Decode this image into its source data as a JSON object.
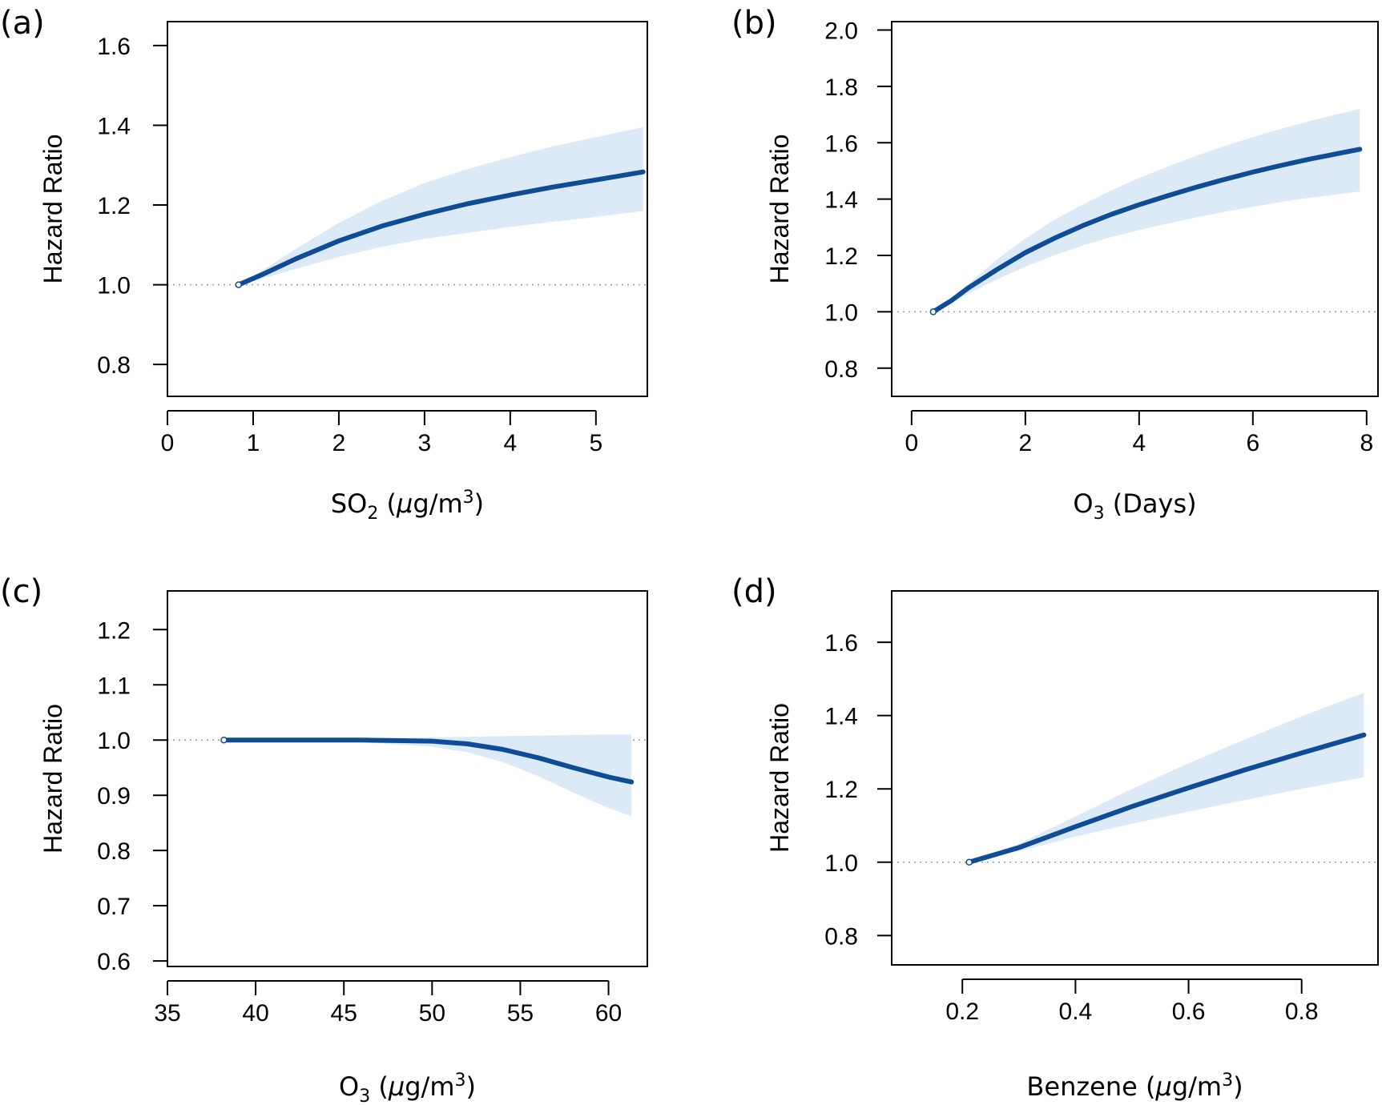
{
  "chart_data": [
    {
      "type": "line",
      "panel": "(a)",
      "ylabel": "Hazard Ratio",
      "xlabel": {
        "pre": "SO",
        "sub": "2",
        "post": " (",
        "it": "μ",
        "post2": "g/m",
        "sup": "3",
        "post3": ")"
      },
      "xlim": [
        0,
        5.6
      ],
      "ylim": [
        0.72,
        1.66
      ],
      "xticks": [
        0,
        1,
        2,
        3,
        4,
        5
      ],
      "xtick_labels": [
        "0",
        "1",
        "2",
        "3",
        "4",
        "5"
      ],
      "yticks": [
        0.8,
        1.0,
        1.2,
        1.4,
        1.6
      ],
      "ytick_labels": [
        "0.8",
        "1.0",
        "1.2",
        "1.4",
        "1.6"
      ],
      "reference_line": 1.0,
      "series": [
        {
          "x": [
            0.83,
            1.1,
            1.5,
            2.0,
            2.5,
            3.0,
            3.5,
            4.0,
            4.5,
            5.0,
            5.55
          ],
          "y": [
            1.0,
            1.025,
            1.065,
            1.11,
            1.147,
            1.177,
            1.203,
            1.225,
            1.245,
            1.263,
            1.283
          ],
          "lower": [
            1.0,
            1.015,
            1.04,
            1.07,
            1.095,
            1.115,
            1.13,
            1.145,
            1.158,
            1.17,
            1.185
          ],
          "upper": [
            1.0,
            1.035,
            1.09,
            1.155,
            1.21,
            1.255,
            1.29,
            1.32,
            1.347,
            1.37,
            1.395
          ]
        }
      ]
    },
    {
      "type": "line",
      "panel": "(b)",
      "ylabel": "Hazard Ratio",
      "xlabel": {
        "pre": "O",
        "sub": "3",
        "post": " (Days)"
      },
      "xlim": [
        -0.35,
        8.2
      ],
      "ylim": [
        0.7,
        2.03
      ],
      "xticks": [
        0,
        2,
        4,
        6,
        8
      ],
      "xtick_labels": [
        "0",
        "2",
        "4",
        "6",
        "8"
      ],
      "yticks": [
        0.8,
        1.0,
        1.2,
        1.4,
        1.6,
        1.8,
        2.0
      ],
      "ytick_labels": [
        "0.8",
        "1.0",
        "1.2",
        "1.4",
        "1.6",
        "1.8",
        "2.0"
      ],
      "reference_line": 1.0,
      "series": [
        {
          "x": [
            0.38,
            0.7,
            1.0,
            1.5,
            2.0,
            2.5,
            3.0,
            3.5,
            4.0,
            4.5,
            5.0,
            5.5,
            6.0,
            6.5,
            7.0,
            7.5,
            7.88
          ],
          "y": [
            1.0,
            1.04,
            1.085,
            1.15,
            1.21,
            1.26,
            1.305,
            1.345,
            1.38,
            1.412,
            1.442,
            1.47,
            1.496,
            1.52,
            1.542,
            1.562,
            1.577
          ],
          "lower": [
            1.0,
            1.03,
            1.065,
            1.115,
            1.16,
            1.2,
            1.235,
            1.265,
            1.29,
            1.313,
            1.335,
            1.355,
            1.373,
            1.39,
            1.405,
            1.418,
            1.427
          ],
          "upper": [
            1.0,
            1.05,
            1.1,
            1.185,
            1.26,
            1.325,
            1.38,
            1.43,
            1.475,
            1.515,
            1.553,
            1.588,
            1.62,
            1.65,
            1.677,
            1.702,
            1.72
          ]
        }
      ]
    },
    {
      "type": "line",
      "panel": "(c)",
      "ylabel": "Hazard Ratio",
      "xlabel": {
        "pre": "O",
        "sub": "3",
        "post": " (",
        "it": "μ",
        "post2": "g/m",
        "sup": "3",
        "post3": ")"
      },
      "xlim": [
        35,
        62.2
      ],
      "ylim": [
        0.59,
        1.27
      ],
      "xticks": [
        35,
        40,
        45,
        50,
        55,
        60
      ],
      "xtick_labels": [
        "35",
        "40",
        "45",
        "50",
        "55",
        "60"
      ],
      "yticks": [
        0.6,
        0.7,
        0.8,
        0.9,
        1.0,
        1.1,
        1.2
      ],
      "ytick_labels": [
        "0.6",
        "0.7",
        "0.8",
        "0.9",
        "1.0",
        "1.1",
        "1.2"
      ],
      "reference_line": 1.0,
      "series": [
        {
          "x": [
            38.2,
            42,
            46,
            50,
            52,
            54,
            56,
            58,
            60,
            61.3
          ],
          "y": [
            1.0,
            1.0,
            1.0,
            0.998,
            0.993,
            0.983,
            0.968,
            0.95,
            0.933,
            0.924
          ],
          "lower": [
            1.0,
            0.999,
            0.996,
            0.988,
            0.978,
            0.96,
            0.935,
            0.905,
            0.877,
            0.862
          ],
          "upper": [
            1.0,
            1.001,
            1.003,
            1.005,
            1.006,
            1.007,
            1.008,
            1.009,
            1.01,
            1.01
          ]
        }
      ]
    },
    {
      "type": "line",
      "panel": "(d)",
      "ylabel": "Hazard Ratio",
      "xlabel": {
        "pre": "Benzene (",
        "it": "μ",
        "post2": "g/m",
        "sup": "3",
        "post3": ")"
      },
      "xlim": [
        0.075,
        0.935
      ],
      "ylim": [
        0.72,
        1.74
      ],
      "xticks": [
        0.2,
        0.4,
        0.6,
        0.8
      ],
      "xtick_labels": [
        "0.2",
        "0.4",
        "0.6",
        "0.8"
      ],
      "yticks": [
        0.8,
        1.0,
        1.2,
        1.4,
        1.6
      ],
      "ytick_labels": [
        "0.8",
        "1.0",
        "1.2",
        "1.4",
        "1.6"
      ],
      "reference_line": 1.0,
      "series": [
        {
          "x": [
            0.212,
            0.3,
            0.4,
            0.5,
            0.6,
            0.7,
            0.8,
            0.91
          ],
          "y": [
            1.0,
            1.04,
            1.097,
            1.152,
            1.203,
            1.252,
            1.298,
            1.347
          ],
          "lower": [
            1.0,
            1.03,
            1.07,
            1.105,
            1.138,
            1.17,
            1.2,
            1.232
          ],
          "upper": [
            1.0,
            1.05,
            1.125,
            1.2,
            1.27,
            1.335,
            1.398,
            1.462
          ]
        }
      ]
    }
  ],
  "colors": {
    "line": "#0e4d96",
    "band": "#dce9f7",
    "reference": "#9a9a9a",
    "axis": "#000000"
  }
}
